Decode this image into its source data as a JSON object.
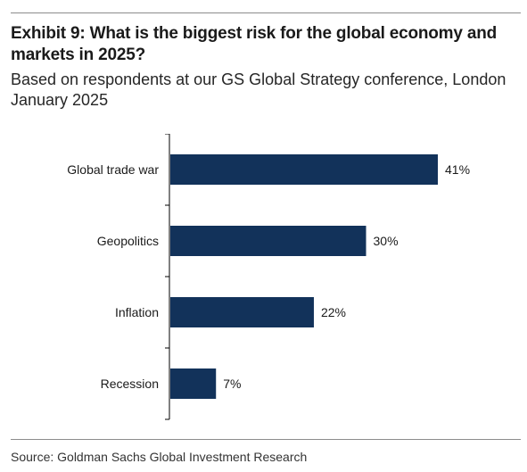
{
  "header": {
    "title": "Exhibit 9: What is the biggest risk for the global economy and markets in 2025?",
    "subtitle": "Based on respondents at our GS Global Strategy conference, London January 2025"
  },
  "footer": {
    "source": "Source: Goldman Sachs Global Investment Research"
  },
  "colors": {
    "bar": "#12325a",
    "axis": "#000000"
  },
  "chart_data": {
    "type": "bar",
    "orientation": "horizontal",
    "categories": [
      "Global trade war",
      "Geopolitics",
      "Inflation",
      "Recession"
    ],
    "values": [
      41,
      30,
      22,
      7
    ],
    "data_labels": [
      "41%",
      "30%",
      "22%",
      "7%"
    ],
    "xlim": [
      0,
      50
    ],
    "grid": false,
    "legend": "none"
  }
}
